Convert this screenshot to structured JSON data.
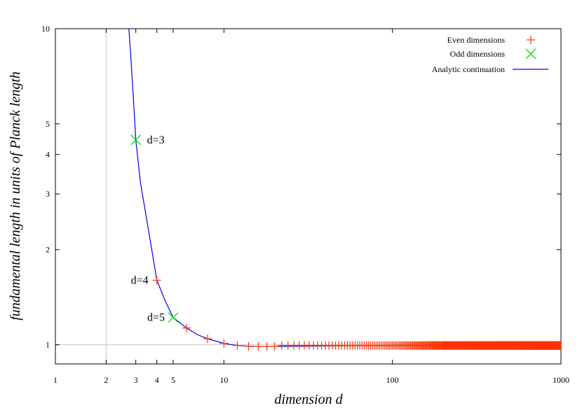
{
  "chart_data": {
    "type": "scatter",
    "x_scale": "log",
    "y_scale": "log",
    "xlim": [
      1,
      1000
    ],
    "ylim": [
      0.87,
      10
    ],
    "xlabel": "dimension d",
    "ylabel": "fundamental length in units of Planck length",
    "x_ticks": [
      1,
      2,
      3,
      4,
      5,
      10,
      100,
      1000
    ],
    "x_tick_labels": [
      "1",
      "2",
      "3",
      "4",
      "5",
      "10",
      "100",
      "1000"
    ],
    "y_ticks": [
      1,
      2,
      3,
      4,
      5,
      10
    ],
    "y_tick_labels": [
      "1",
      "2",
      "3",
      "4",
      "5",
      "10"
    ],
    "reference_lines": [
      {
        "axis": "x",
        "value": 2
      },
      {
        "axis": "y",
        "value": 1
      }
    ],
    "grid": false,
    "legend_position": "top-right",
    "legend": [
      {
        "label": "Even dimensions",
        "marker": "plus",
        "color": "#ff3300"
      },
      {
        "label": "Odd dimensions",
        "marker": "x",
        "color": "#00dd00"
      },
      {
        "label": "Analytic continuation",
        "marker": "line",
        "color": "#0000ee"
      }
    ],
    "series": [
      {
        "name": "Even dimensions",
        "marker": "plus",
        "color": "#ff3300",
        "points": [
          [
            4,
            1.6
          ],
          [
            6,
            1.13
          ],
          [
            8,
            1.045
          ],
          [
            10,
            1.01
          ],
          [
            12,
            0.995
          ],
          [
            14,
            0.99
          ],
          [
            16,
            0.988
          ],
          [
            18,
            0.988
          ],
          [
            20,
            0.988
          ]
        ],
        "dense_range": {
          "from": 22,
          "to": 1000,
          "step": 2,
          "value": 0.995
        }
      },
      {
        "name": "Odd dimensions",
        "marker": "x",
        "color": "#00dd00",
        "points": [
          [
            3,
            4.45
          ],
          [
            5,
            1.22
          ]
        ]
      },
      {
        "name": "Analytic continuation",
        "marker": "line",
        "color": "#0000ee",
        "points": [
          [
            2.73,
            10
          ],
          [
            2.8,
            8.2
          ],
          [
            2.9,
            6.1
          ],
          [
            3,
            4.45
          ],
          [
            3.2,
            3.25
          ],
          [
            3.5,
            2.45
          ],
          [
            4,
            1.6
          ],
          [
            4.5,
            1.37
          ],
          [
            5,
            1.22
          ],
          [
            6,
            1.13
          ],
          [
            7,
            1.075
          ],
          [
            8,
            1.045
          ],
          [
            10,
            1.01
          ],
          [
            12,
            0.995
          ],
          [
            15,
            0.988
          ],
          [
            20,
            0.988
          ],
          [
            30,
            0.99
          ],
          [
            50,
            0.993
          ],
          [
            100,
            0.996
          ],
          [
            300,
            0.998
          ],
          [
            1000,
            1.0
          ]
        ]
      }
    ],
    "annotations": [
      {
        "text": "d=3",
        "x": 3,
        "y": 4.45
      },
      {
        "text": "d=4",
        "x": 4,
        "y": 1.6
      },
      {
        "text": "d=5",
        "x": 5,
        "y": 1.22
      }
    ]
  }
}
